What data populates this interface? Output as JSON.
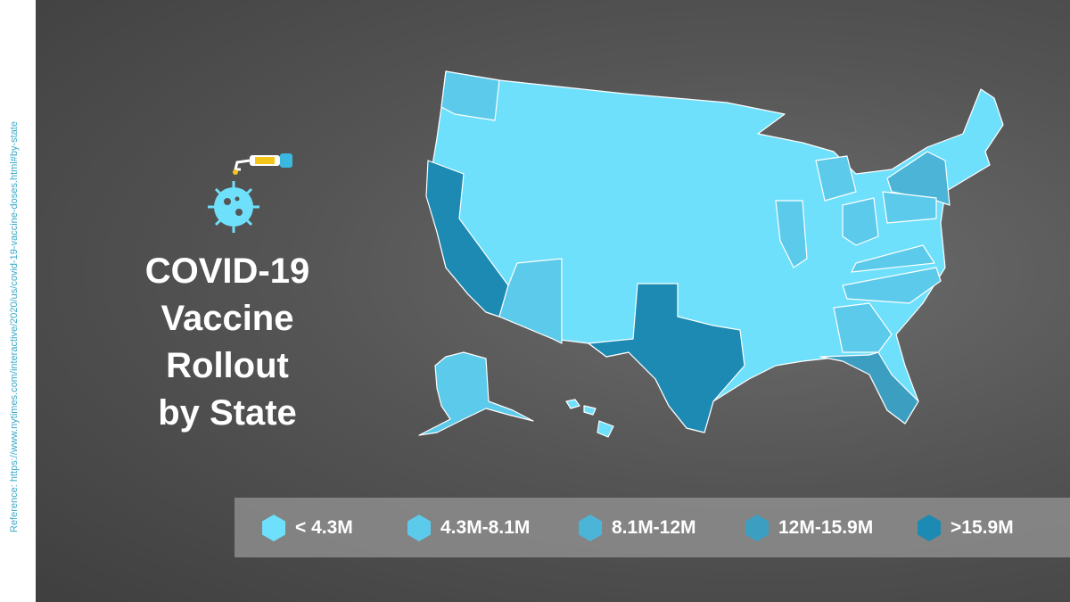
{
  "title": [
    "COVID-19",
    "Vaccine Rollout",
    "by State"
  ],
  "reference": "Reference: https://www.nytimes.com/interactive/2020/us/covid-19-vaccine-doses.html#by-state",
  "legend": [
    {
      "label": "< 4.3M",
      "color": "#6ee0fb"
    },
    {
      "label": "4.3M-8.1M",
      "color": "#5ccaea"
    },
    {
      "label": "8.1M-12M",
      "color": "#4cb5d7"
    },
    {
      "label": "12M-15.9M",
      "color": "#3c9fc2"
    },
    {
      "label": ">15.9M",
      "color": "#1c8ab2"
    }
  ]
}
